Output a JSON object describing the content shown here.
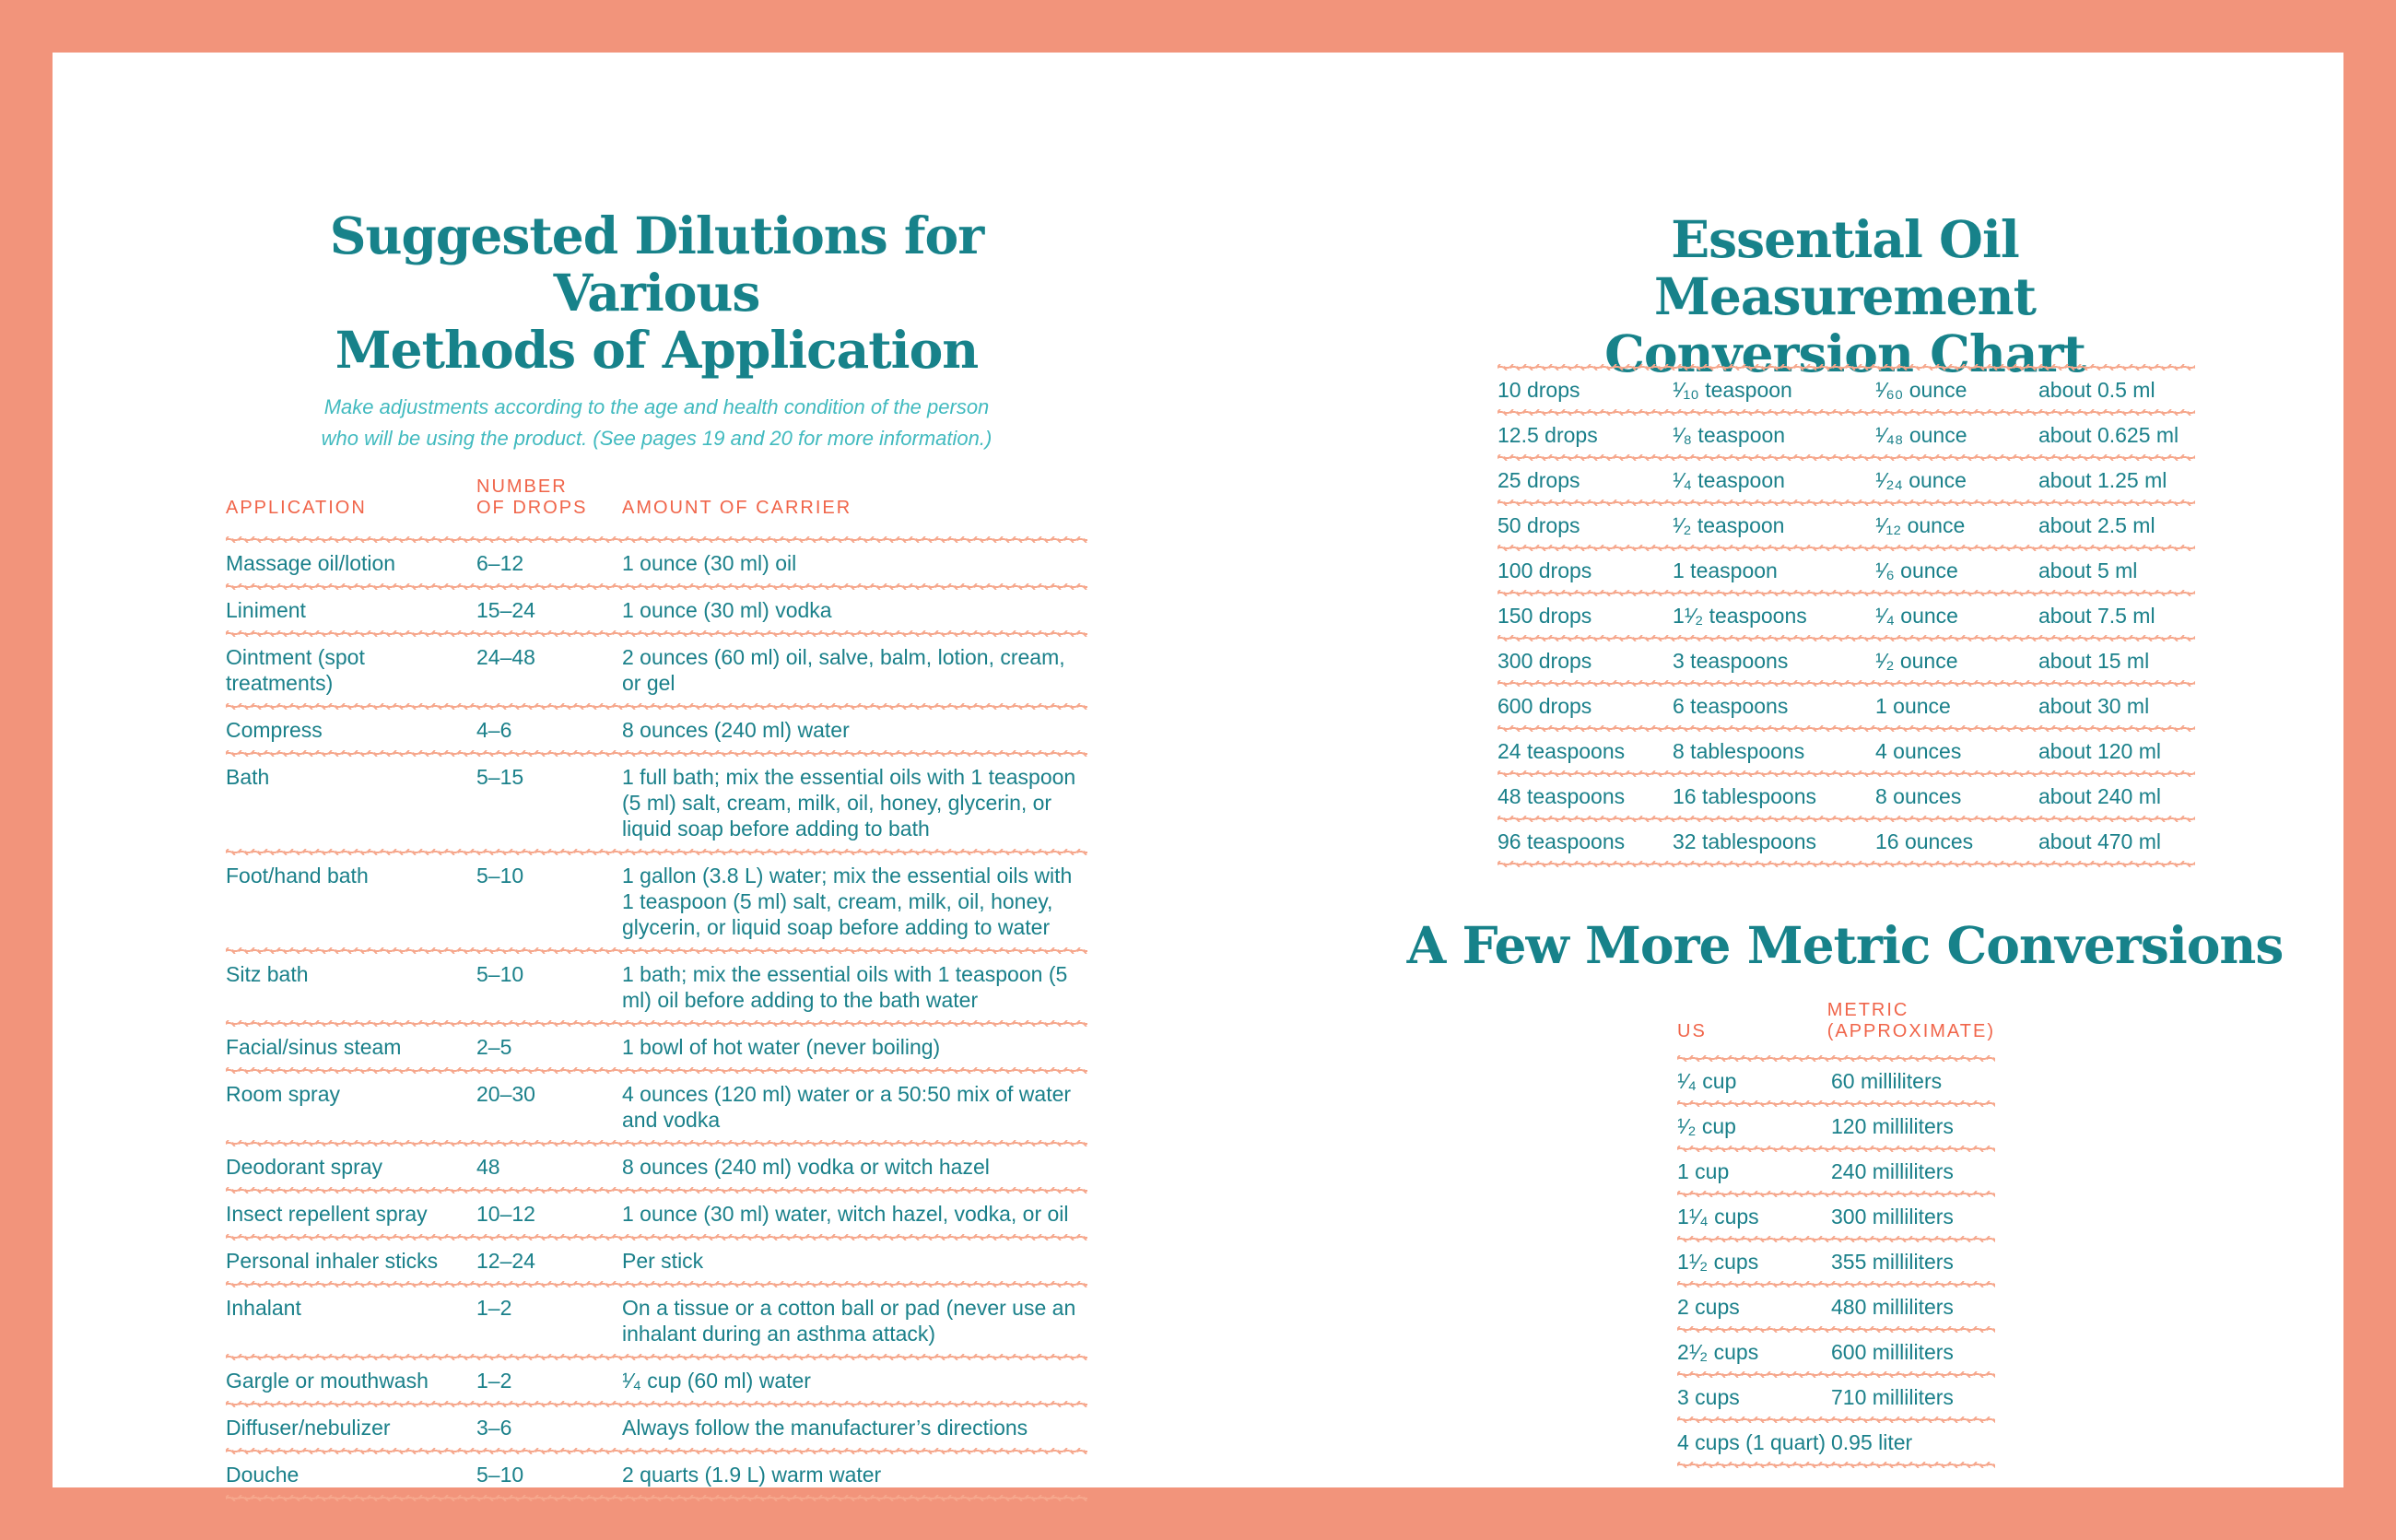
{
  "colors": {
    "border_salmon": "#F2947B",
    "wave_salmon": "#F6A78C",
    "header_orange": "#F0654A",
    "title_teal": "#17828A",
    "body_teal": "#1A808A",
    "subtitle_teal": "#41BABF",
    "page_white": "#FFFFFF"
  },
  "left_page": {
    "title_lines": [
      "Suggested Dilutions for Various",
      "Methods of Application"
    ],
    "subtitle_lines": [
      "Make adjustments according to the age and health condition of the person",
      "who will be using the product. (See pages 19 and 20 for more information.)"
    ],
    "table": {
      "headers": {
        "application": "APPLICATION",
        "drops_line1": "NUMBER",
        "drops_line2": "OF DROPS",
        "carrier": "AMOUNT OF CARRIER"
      },
      "rows": [
        {
          "application": "Massage oil/lotion",
          "drops": "6–12",
          "carrier": "1 ounce (30 ml) oil"
        },
        {
          "application": "Liniment",
          "drops": "15–24",
          "carrier": "1 ounce (30 ml) vodka"
        },
        {
          "application": "Ointment (spot treatments)",
          "drops": "24–48",
          "carrier": "2 ounces (60 ml) oil, salve, balm, lotion, cream, or gel"
        },
        {
          "application": "Compress",
          "drops": "4–6",
          "carrier": "8 ounces (240 ml) water"
        },
        {
          "application": "Bath",
          "drops": "5–15",
          "carrier": "1 full bath; mix the essential oils with 1 teaspoon (5 ml) salt, cream, milk, oil, honey, glycerin, or liquid soap before adding to bath"
        },
        {
          "application": "Foot/hand bath",
          "drops": "5–10",
          "carrier": "1 gallon (3.8 L) water; mix the essential oils with 1 teaspoon (5 ml) salt, cream, milk, oil, honey, glycerin, or liquid soap before adding to water"
        },
        {
          "application": "Sitz bath",
          "drops": "5–10",
          "carrier": "1 bath; mix the essential oils with 1 teaspoon (5 ml) oil before adding to the bath water"
        },
        {
          "application": "Facial/sinus steam",
          "drops": "2–5",
          "carrier": "1 bowl of hot water (never boiling)"
        },
        {
          "application": "Room spray",
          "drops": "20–30",
          "carrier": "4 ounces (120 ml) water or a 50:50 mix of water and vodka"
        },
        {
          "application": "Deodorant spray",
          "drops": "48",
          "carrier": "8 ounces (240 ml) vodka or witch hazel"
        },
        {
          "application": "Insect repellent spray",
          "drops": "10–12",
          "carrier": "1 ounce (30 ml) water, witch hazel, vodka, or oil"
        },
        {
          "application": "Personal inhaler sticks",
          "drops": "12–24",
          "carrier": "Per stick"
        },
        {
          "application": "Inhalant",
          "drops": "1–2",
          "carrier": "On a tissue or a cotton ball or pad (never use an inhalant during an asthma attack)"
        },
        {
          "application": "Gargle or mouthwash",
          "drops": "1–2",
          "carrier": "¹⁄₄ cup (60 ml) water"
        },
        {
          "application": "Diffuser/nebulizer",
          "drops": "3–6",
          "carrier": "Always follow the manufacturer’s directions"
        },
        {
          "application": "Douche",
          "drops": "5–10",
          "carrier": "2 quarts (1.9 L) warm water"
        }
      ]
    }
  },
  "right_page": {
    "conversion": {
      "title_lines": [
        "Essential Oil Measurement",
        "Conversion Chart"
      ],
      "rows": [
        {
          "drops": "10 drops",
          "teaspoons": "¹⁄₁₀ teaspoon",
          "ounces": "¹⁄₆₀ ounce",
          "milliliters": "about 0.5 ml"
        },
        {
          "drops": "12.5 drops",
          "teaspoons": "¹⁄₈ teaspoon",
          "ounces": "¹⁄₄₈ ounce",
          "milliliters": "about 0.625 ml"
        },
        {
          "drops": "25 drops",
          "teaspoons": "¹⁄₄ teaspoon",
          "ounces": "¹⁄₂₄ ounce",
          "milliliters": "about 1.25 ml"
        },
        {
          "drops": "50 drops",
          "teaspoons": "¹⁄₂ teaspoon",
          "ounces": "¹⁄₁₂ ounce",
          "milliliters": "about 2.5 ml"
        },
        {
          "drops": "100 drops",
          "teaspoons": "1 teaspoon",
          "ounces": "¹⁄₆ ounce",
          "milliliters": "about 5 ml"
        },
        {
          "drops": "150 drops",
          "teaspoons": "1¹⁄₂ teaspoons",
          "ounces": "¹⁄₄ ounce",
          "milliliters": "about 7.5 ml"
        },
        {
          "drops": "300 drops",
          "teaspoons": "3 teaspoons",
          "ounces": "¹⁄₂ ounce",
          "milliliters": "about 15 ml"
        },
        {
          "drops": "600 drops",
          "teaspoons": "6 teaspoons",
          "ounces": "1 ounce",
          "milliliters": "about 30 ml"
        },
        {
          "drops": "24 teaspoons",
          "teaspoons": "8 tablespoons",
          "ounces": "4 ounces",
          "milliliters": "about 120 ml"
        },
        {
          "drops": "48 teaspoons",
          "teaspoons": "16 tablespoons",
          "ounces": "8 ounces",
          "milliliters": "about 240 ml"
        },
        {
          "drops": "96 teaspoons",
          "teaspoons": "32 tablespoons",
          "ounces": "16 ounces",
          "milliliters": "about 470 ml"
        }
      ]
    },
    "metric": {
      "title": "A Few More Metric Conversions",
      "headers": {
        "us": "US",
        "metric_line1": "METRIC",
        "metric_line2": "(APPROXIMATE)"
      },
      "rows": [
        {
          "us": "¹⁄₄ cup",
          "metric": "60 milliliters"
        },
        {
          "us": "¹⁄₂ cup",
          "metric": "120 milliliters"
        },
        {
          "us": "1 cup",
          "metric": "240 milliliters"
        },
        {
          "us": "1¹⁄₄ cups",
          "metric": "300 milliliters"
        },
        {
          "us": "1¹⁄₂ cups",
          "metric": "355 milliliters"
        },
        {
          "us": "2 cups",
          "metric": "480 milliliters"
        },
        {
          "us": "2¹⁄₂ cups",
          "metric": "600 milliliters"
        },
        {
          "us": "3 cups",
          "metric": "710 milliliters"
        },
        {
          "us": "4 cups (1 quart)",
          "metric": "0.95 liter"
        }
      ]
    }
  }
}
